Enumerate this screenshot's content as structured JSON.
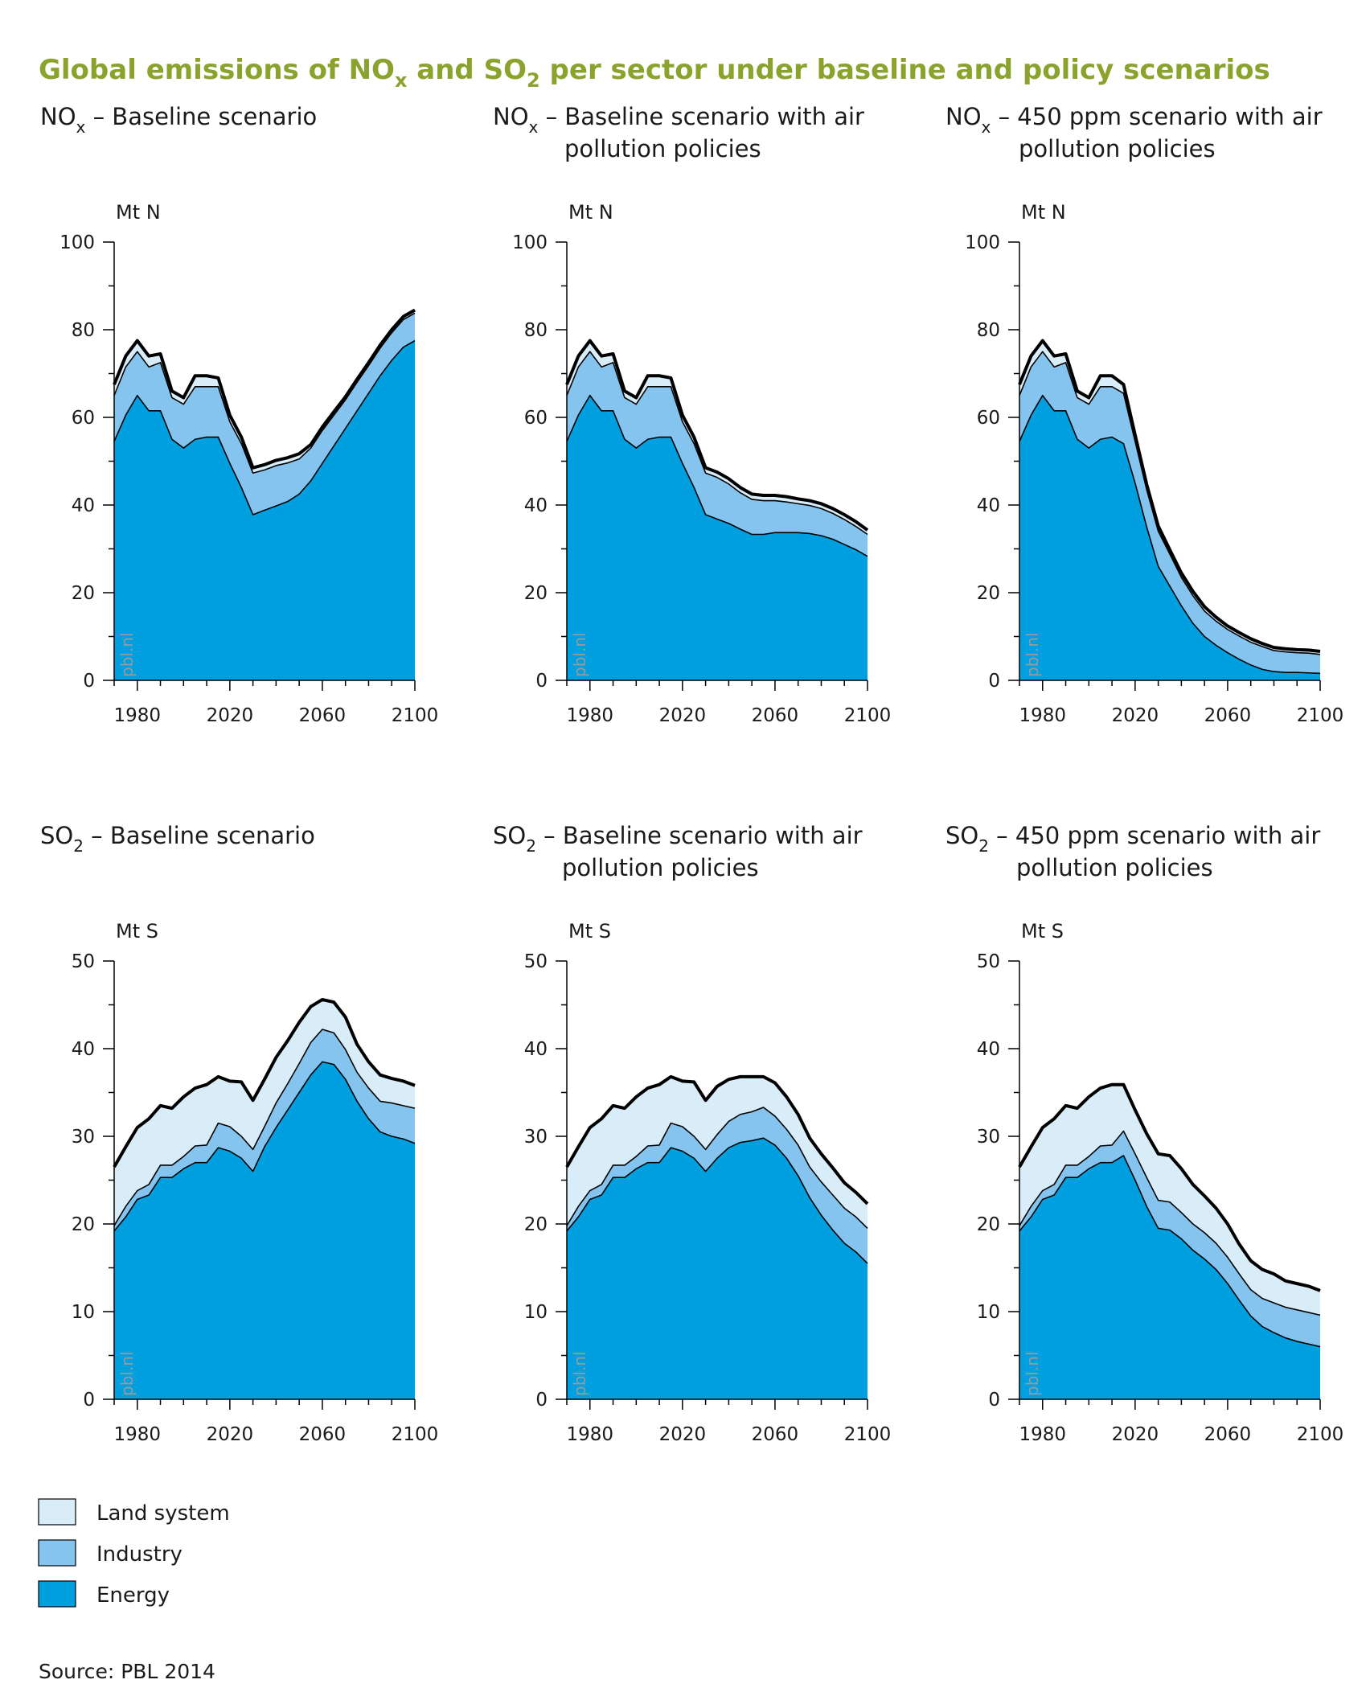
{
  "title": {
    "parts": [
      {
        "t": "Global emissions of NO"
      },
      {
        "t": "x",
        "sub": true
      },
      {
        "t": " and SO"
      },
      {
        "t": "2",
        "sub": true
      },
      {
        "t": " per sector under baseline and policy scenarios"
      }
    ]
  },
  "colors": {
    "title": "#8ba22c",
    "land": "#d9edf9",
    "industry": "#84c4ee",
    "energy": "#009fdf",
    "outline": "#000000"
  },
  "legend": [
    {
      "key": "land",
      "label": "Land system"
    },
    {
      "key": "industry",
      "label": "Industry"
    },
    {
      "key": "energy",
      "label": "Energy"
    }
  ],
  "source": "Source: PBL 2014",
  "watermark": "pbl.nl",
  "chart_data": [
    {
      "type": "area",
      "title_parts": [
        {
          "t": "NO"
        },
        {
          "t": "x",
          "sub": true
        },
        {
          "t": " – Baseline scenario"
        }
      ],
      "title_line2": "",
      "unit": "Mt N",
      "ylim": [
        0,
        100
      ],
      "yticks": [
        "0",
        "20",
        "40",
        "60",
        "80",
        "100"
      ],
      "xlim": [
        1970,
        2100
      ],
      "xticks": [
        "1980",
        "2020",
        "2060",
        "2100"
      ],
      "stacked": true,
      "x": [
        1970,
        1975,
        1980,
        1985,
        1990,
        1995,
        2000,
        2005,
        2010,
        2015,
        2020,
        2025,
        2030,
        2035,
        2040,
        2045,
        2050,
        2055,
        2060,
        2065,
        2070,
        2075,
        2080,
        2085,
        2090,
        2095,
        2100
      ],
      "series": [
        {
          "name": "Energy",
          "key": "energy",
          "values": [
            54.5,
            60.5,
            65.0,
            61.5,
            61.5,
            55.0,
            53.0,
            55.0,
            55.5,
            55.5,
            49.5,
            44.0,
            37.8,
            38.8,
            39.8,
            40.8,
            42.5,
            45.5,
            49.5,
            53.5,
            57.5,
            61.5,
            65.5,
            69.5,
            73.0,
            76.0,
            77.5
          ]
        },
        {
          "name": "Industry",
          "key": "industry",
          "values": [
            10.5,
            11.0,
            10.0,
            10.0,
            11.0,
            9.5,
            10.0,
            12.0,
            11.5,
            11.5,
            9.5,
            10.0,
            9.5,
            9.2,
            9.2,
            8.8,
            8.0,
            7.5,
            7.5,
            7.0,
            6.5,
            6.5,
            6.3,
            6.3,
            6.3,
            6.3,
            6.3
          ]
        },
        {
          "name": "Land system",
          "key": "land",
          "values": [
            2.5,
            2.5,
            2.5,
            2.5,
            2.0,
            1.5,
            1.5,
            2.5,
            2.5,
            2.0,
            1.5,
            1.5,
            1.2,
            1.2,
            1.2,
            1.2,
            1.2,
            0.8,
            0.8,
            0.8,
            0.7,
            0.7,
            0.7,
            0.7,
            0.7,
            0.7,
            0.7
          ]
        }
      ]
    },
    {
      "type": "area",
      "title_parts": [
        {
          "t": "NO"
        },
        {
          "t": "x",
          "sub": true
        },
        {
          "t": " – Baseline scenario with air"
        }
      ],
      "title_line2": "pollution policies",
      "unit": "Mt N",
      "ylim": [
        0,
        100
      ],
      "yticks": [
        "0",
        "20",
        "40",
        "60",
        "80",
        "100"
      ],
      "xlim": [
        1970,
        2100
      ],
      "xticks": [
        "1980",
        "2020",
        "2060",
        "2100"
      ],
      "stacked": true,
      "x": [
        1970,
        1975,
        1980,
        1985,
        1990,
        1995,
        2000,
        2005,
        2010,
        2015,
        2020,
        2025,
        2030,
        2035,
        2040,
        2045,
        2050,
        2055,
        2060,
        2065,
        2070,
        2075,
        2080,
        2085,
        2090,
        2095,
        2100
      ],
      "series": [
        {
          "name": "Energy",
          "key": "energy",
          "values": [
            54.5,
            60.5,
            65.0,
            61.5,
            61.5,
            55.0,
            53.0,
            55.0,
            55.5,
            55.5,
            49.5,
            44.0,
            37.8,
            36.8,
            35.8,
            34.5,
            33.3,
            33.3,
            33.7,
            33.7,
            33.7,
            33.5,
            33.0,
            32.2,
            31.0,
            29.8,
            28.3
          ]
        },
        {
          "name": "Industry",
          "key": "industry",
          "values": [
            10.5,
            11.0,
            10.0,
            10.0,
            11.0,
            9.5,
            10.0,
            12.0,
            11.5,
            11.5,
            9.5,
            10.0,
            9.5,
            9.5,
            9.0,
            8.3,
            8.0,
            7.7,
            7.3,
            7.0,
            6.6,
            6.4,
            6.2,
            5.9,
            5.7,
            5.3,
            5.0
          ]
        },
        {
          "name": "Land system",
          "key": "land",
          "values": [
            2.5,
            2.5,
            2.5,
            2.5,
            2.0,
            1.5,
            1.5,
            2.5,
            2.5,
            2.0,
            1.5,
            1.5,
            1.2,
            1.2,
            1.2,
            1.2,
            1.2,
            1.2,
            1.2,
            1.2,
            1.1,
            1.1,
            1.1,
            1.1,
            1.1,
            1.1,
            1.0
          ]
        }
      ]
    },
    {
      "type": "area",
      "title_parts": [
        {
          "t": "NO"
        },
        {
          "t": "x",
          "sub": true
        },
        {
          "t": " – 450 ppm scenario with air"
        }
      ],
      "title_line2": "pollution policies",
      "unit": "Mt N",
      "ylim": [
        0,
        100
      ],
      "yticks": [
        "0",
        "20",
        "40",
        "60",
        "80",
        "100"
      ],
      "xlim": [
        1970,
        2100
      ],
      "xticks": [
        "1980",
        "2020",
        "2060",
        "2100"
      ],
      "stacked": true,
      "x": [
        1970,
        1975,
        1980,
        1985,
        1990,
        1995,
        2000,
        2005,
        2010,
        2015,
        2020,
        2025,
        2030,
        2035,
        2040,
        2045,
        2050,
        2055,
        2060,
        2065,
        2070,
        2075,
        2080,
        2085,
        2090,
        2095,
        2100
      ],
      "series": [
        {
          "name": "Energy",
          "key": "energy",
          "values": [
            54.5,
            60.5,
            65.0,
            61.5,
            61.5,
            55.0,
            53.0,
            55.0,
            55.5,
            54.0,
            45.0,
            35.0,
            26.0,
            21.5,
            17.0,
            13.0,
            10.0,
            8.0,
            6.3,
            4.8,
            3.5,
            2.5,
            2.0,
            1.8,
            1.8,
            1.7,
            1.6
          ]
        },
        {
          "name": "Industry",
          "key": "industry",
          "values": [
            10.5,
            11.0,
            10.0,
            10.0,
            11.0,
            9.5,
            10.0,
            12.0,
            11.5,
            11.5,
            9.5,
            8.5,
            8.0,
            7.3,
            6.5,
            6.3,
            5.8,
            5.5,
            5.3,
            5.3,
            5.2,
            5.2,
            4.8,
            4.7,
            4.5,
            4.5,
            4.3
          ]
        },
        {
          "name": "Land system",
          "key": "land",
          "values": [
            2.5,
            2.5,
            2.5,
            2.5,
            2.0,
            1.5,
            1.5,
            2.5,
            2.5,
            2.0,
            1.5,
            1.2,
            1.2,
            1.0,
            1.0,
            1.0,
            1.0,
            0.9,
            0.8,
            0.8,
            0.8,
            0.7,
            0.7,
            0.7,
            0.7,
            0.7,
            0.7
          ]
        }
      ]
    },
    {
      "type": "area",
      "title_parts": [
        {
          "t": "SO"
        },
        {
          "t": "2",
          "sub": true
        },
        {
          "t": " – Baseline scenario"
        }
      ],
      "title_line2": "",
      "unit": "Mt S",
      "ylim": [
        0,
        50
      ],
      "yticks": [
        "0",
        "10",
        "20",
        "30",
        "40",
        "50"
      ],
      "xlim": [
        1970,
        2100
      ],
      "xticks": [
        "1980",
        "2020",
        "2060",
        "2100"
      ],
      "stacked": true,
      "x": [
        1970,
        1975,
        1980,
        1985,
        1990,
        1995,
        2000,
        2005,
        2010,
        2015,
        2020,
        2025,
        2030,
        2035,
        2040,
        2045,
        2050,
        2055,
        2060,
        2065,
        2070,
        2075,
        2080,
        2085,
        2090,
        2095,
        2100
      ],
      "series": [
        {
          "name": "Energy",
          "key": "energy",
          "values": [
            19.2,
            20.8,
            22.8,
            23.3,
            25.3,
            25.3,
            26.3,
            27.0,
            27.0,
            28.7,
            28.3,
            27.5,
            26.0,
            28.8,
            31.0,
            33.0,
            35.0,
            37.0,
            38.5,
            38.2,
            36.5,
            34.0,
            32.0,
            30.5,
            30.0,
            29.7,
            29.2
          ]
        },
        {
          "name": "Industry",
          "key": "industry",
          "values": [
            0.6,
            1.2,
            1.0,
            1.2,
            1.4,
            1.4,
            1.4,
            1.9,
            2.0,
            2.8,
            2.8,
            2.5,
            2.5,
            2.3,
            2.8,
            3.0,
            3.3,
            3.7,
            3.7,
            3.6,
            3.4,
            3.3,
            3.5,
            3.5,
            3.8,
            3.8,
            4.0
          ]
        },
        {
          "name": "Land system",
          "key": "land",
          "values": [
            6.7,
            6.8,
            7.2,
            7.5,
            6.8,
            6.5,
            6.8,
            6.6,
            6.9,
            5.3,
            5.2,
            6.2,
            5.6,
            5.4,
            5.2,
            4.9,
            4.7,
            4.1,
            3.4,
            3.5,
            3.7,
            3.2,
            3.0,
            3.0,
            2.8,
            2.8,
            2.6
          ]
        }
      ]
    },
    {
      "type": "area",
      "title_parts": [
        {
          "t": "SO"
        },
        {
          "t": "2",
          "sub": true
        },
        {
          "t": " – Baseline scenario with air"
        }
      ],
      "title_line2": "pollution policies",
      "unit": "Mt S",
      "ylim": [
        0,
        50
      ],
      "yticks": [
        "0",
        "10",
        "20",
        "30",
        "40",
        "50"
      ],
      "xlim": [
        1970,
        2100
      ],
      "xticks": [
        "1980",
        "2020",
        "2060",
        "2100"
      ],
      "stacked": true,
      "x": [
        1970,
        1975,
        1980,
        1985,
        1990,
        1995,
        2000,
        2005,
        2010,
        2015,
        2020,
        2025,
        2030,
        2035,
        2040,
        2045,
        2050,
        2055,
        2060,
        2065,
        2070,
        2075,
        2080,
        2085,
        2090,
        2095,
        2100
      ],
      "series": [
        {
          "name": "Energy",
          "key": "energy",
          "values": [
            19.2,
            20.8,
            22.8,
            23.3,
            25.3,
            25.3,
            26.3,
            27.0,
            27.0,
            28.7,
            28.3,
            27.5,
            26.0,
            27.5,
            28.7,
            29.3,
            29.5,
            29.8,
            29.0,
            27.5,
            25.5,
            23.0,
            21.0,
            19.3,
            17.8,
            16.8,
            15.5
          ]
        },
        {
          "name": "Industry",
          "key": "industry",
          "values": [
            0.6,
            1.2,
            1.0,
            1.2,
            1.4,
            1.4,
            1.4,
            1.9,
            2.0,
            2.8,
            2.8,
            2.5,
            2.5,
            2.7,
            3.0,
            3.2,
            3.3,
            3.5,
            3.3,
            3.3,
            3.5,
            3.5,
            3.8,
            4.0,
            4.0,
            4.0,
            4.0
          ]
        },
        {
          "name": "Land system",
          "key": "land",
          "values": [
            6.7,
            6.8,
            7.2,
            7.5,
            6.8,
            6.5,
            6.8,
            6.6,
            6.9,
            5.3,
            5.2,
            6.2,
            5.6,
            5.5,
            4.8,
            4.3,
            4.0,
            3.5,
            3.8,
            3.7,
            3.5,
            3.3,
            3.2,
            3.1,
            2.9,
            2.8,
            2.8
          ]
        }
      ]
    },
    {
      "type": "area",
      "title_parts": [
        {
          "t": "SO"
        },
        {
          "t": "2",
          "sub": true
        },
        {
          "t": " – 450 ppm scenario with air"
        }
      ],
      "title_line2": "pollution policies",
      "unit": "Mt S",
      "ylim": [
        0,
        50
      ],
      "yticks": [
        "0",
        "10",
        "20",
        "30",
        "40",
        "50"
      ],
      "xlim": [
        1970,
        2100
      ],
      "xticks": [
        "1980",
        "2020",
        "2060",
        "2100"
      ],
      "stacked": true,
      "x": [
        1970,
        1975,
        1980,
        1985,
        1990,
        1995,
        2000,
        2005,
        2010,
        2015,
        2020,
        2025,
        2030,
        2035,
        2040,
        2045,
        2050,
        2055,
        2060,
        2065,
        2070,
        2075,
        2080,
        2085,
        2090,
        2095,
        2100
      ],
      "series": [
        {
          "name": "Energy",
          "key": "energy",
          "values": [
            19.2,
            20.8,
            22.8,
            23.3,
            25.3,
            25.3,
            26.3,
            27.0,
            27.0,
            27.8,
            25.0,
            22.0,
            19.5,
            19.3,
            18.3,
            17.0,
            16.0,
            14.8,
            13.2,
            11.3,
            9.5,
            8.3,
            7.6,
            7.0,
            6.6,
            6.3,
            6.0
          ]
        },
        {
          "name": "Industry",
          "key": "industry",
          "values": [
            0.6,
            1.2,
            1.0,
            1.2,
            1.4,
            1.4,
            1.4,
            1.9,
            2.0,
            2.8,
            3.0,
            3.3,
            3.2,
            3.2,
            3.0,
            3.0,
            3.0,
            3.0,
            3.0,
            3.0,
            3.0,
            3.2,
            3.4,
            3.5,
            3.6,
            3.6,
            3.6
          ]
        },
        {
          "name": "Land system",
          "key": "land",
          "values": [
            6.7,
            6.8,
            7.2,
            7.5,
            6.8,
            6.5,
            6.8,
            6.6,
            6.9,
            5.3,
            5.0,
            5.0,
            5.3,
            5.3,
            5.0,
            4.5,
            4.2,
            4.0,
            3.8,
            3.4,
            3.3,
            3.3,
            3.3,
            3.0,
            3.0,
            3.0,
            2.8
          ]
        }
      ]
    }
  ]
}
